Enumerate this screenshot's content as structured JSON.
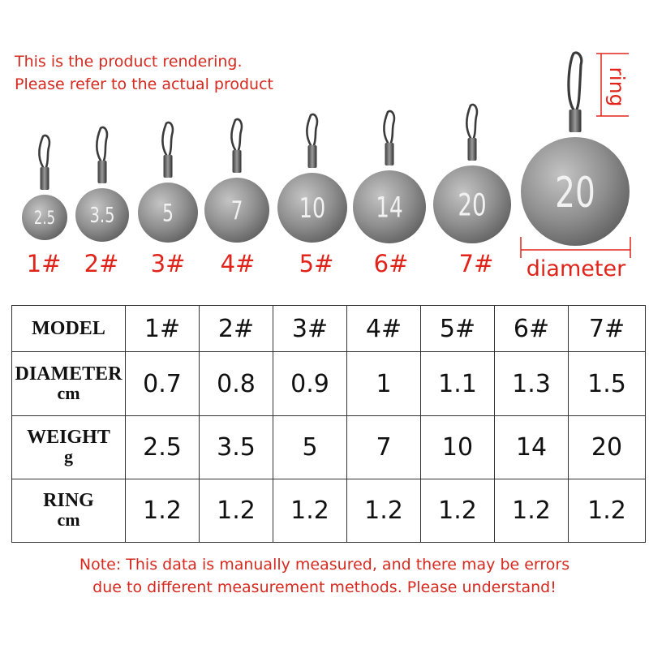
{
  "disclaimer": {
    "line1": "This is the product rendering.",
    "line2": "Please refer to the actual product"
  },
  "products": [
    {
      "model": "1#",
      "weight_text": "2.5"
    },
    {
      "model": "2#",
      "weight_text": "3.5"
    },
    {
      "model": "3#",
      "weight_text": "5"
    },
    {
      "model": "4#",
      "weight_text": "7"
    },
    {
      "model": "5#",
      "weight_text": "10"
    },
    {
      "model": "6#",
      "weight_text": "14"
    },
    {
      "model": "7#",
      "weight_text": "20"
    }
  ],
  "feature_weight": {
    "weight_text": "20"
  },
  "dimension_labels": {
    "ring": "ring",
    "diameter": "diameter"
  },
  "table": {
    "rows": [
      {
        "label": "MODEL",
        "unit": "",
        "values": [
          "1#",
          "2#",
          "3#",
          "4#",
          "5#",
          "6#",
          "7#"
        ]
      },
      {
        "label": "DIAMETER",
        "unit": "cm",
        "values": [
          "0.7",
          "0.8",
          "0.9",
          "1",
          "1.1",
          "1.3",
          "1.5"
        ]
      },
      {
        "label": "WEIGHT",
        "unit": "g",
        "values": [
          "2.5",
          "3.5",
          "5",
          "7",
          "10",
          "14",
          "20"
        ]
      },
      {
        "label": "RING",
        "unit": "cm",
        "values": [
          "1.2",
          "1.2",
          "1.2",
          "1.2",
          "1.2",
          "1.2",
          "1.2"
        ]
      }
    ]
  },
  "note": {
    "line1": "Note: This data is manually measured, and there may be errors",
    "line2": "due to different measurement methods. Please understand!"
  },
  "colors": {
    "accent_red": "#e0241a",
    "metal": "#8a8a8a"
  }
}
